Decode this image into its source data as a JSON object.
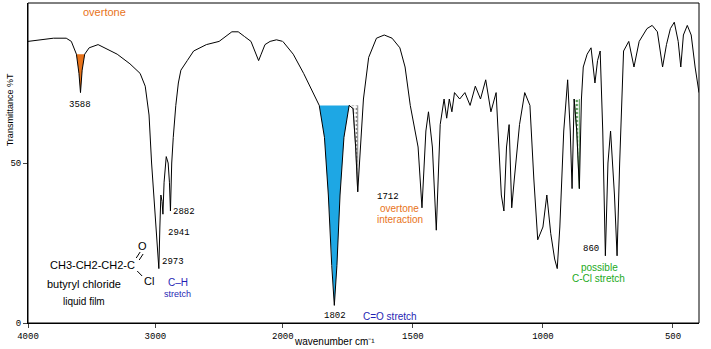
{
  "chart_data": [
    {
      "type": "line",
      "color": "#000000",
      "y_label": "Transmittance %T",
      "xlim": [
        4000,
        2000
      ],
      "xticks": [
        4000,
        3000,
        2000
      ],
      "ylim": [
        0,
        100
      ],
      "yticks": [
        0,
        50
      ],
      "x": [
        4000,
        3900,
        3800,
        3700,
        3660,
        3620,
        3600,
        3588,
        3575,
        3555,
        3520,
        3450,
        3400,
        3300,
        3200,
        3120,
        3080,
        3050,
        3030,
        3010,
        2995,
        2985,
        2973,
        2965,
        2957,
        2948,
        2941,
        2932,
        2915,
        2900,
        2890,
        2882,
        2872,
        2860,
        2840,
        2820,
        2800,
        2750,
        2700,
        2600,
        2500,
        2400,
        2350,
        2300,
        2250,
        2220,
        2190,
        2170,
        2140,
        2100,
        2050,
        2000
      ],
      "values": [
        88,
        88.5,
        89,
        89,
        88,
        84,
        78,
        72,
        79,
        84,
        86,
        87,
        86,
        84,
        81,
        78,
        74,
        65,
        50,
        38,
        28,
        22,
        17,
        30,
        40,
        38,
        34,
        44,
        52,
        50,
        44,
        35,
        50,
        58,
        68,
        75,
        79,
        82,
        85,
        87,
        88,
        91,
        91,
        89.5,
        88,
        85,
        82,
        84,
        87,
        88,
        88.5,
        88
      ],
      "regions": [
        {
          "type": "fill",
          "x0": 3620,
          "x1": 3555,
          "level": 84,
          "color": "#e8731a"
        }
      ],
      "annotations": [
        {
          "text": "overtone",
          "x": 3588,
          "y": 72,
          "color": "#e8731a"
        },
        {
          "text": "3588",
          "x": 3588,
          "y": 72,
          "color": "#000000"
        },
        {
          "text": "2973",
          "x": 2973,
          "y": 17,
          "color": "#000000"
        },
        {
          "text": "2941",
          "x": 2941,
          "y": 34,
          "color": "#000000"
        },
        {
          "text": "2882",
          "x": 2882,
          "y": 35,
          "color": "#000000"
        },
        {
          "text": "C–H",
          "x": 2973,
          "y": 17,
          "color": "#1f1fb4"
        },
        {
          "text": "stretch",
          "x": 2973,
          "y": 17,
          "color": "#1f1fb4"
        }
      ],
      "texts": [
        "CH3-CH2-CH2-C",
        "O",
        "Cl",
        "butyryl chloride",
        "liquid film"
      ]
    },
    {
      "type": "line",
      "color": "#000000",
      "x_label": "wavenumber cm⁻¹",
      "xlim": [
        2000,
        400
      ],
      "xticks": [
        1500,
        1000,
        500
      ],
      "x": [
        2000,
        1960,
        1920,
        1880,
        1860,
        1840,
        1825,
        1812,
        1802,
        1792,
        1780,
        1765,
        1745,
        1730,
        1720,
        1712,
        1704,
        1690,
        1670,
        1640,
        1610,
        1580,
        1550,
        1530,
        1510,
        1480,
        1465,
        1450,
        1440,
        1425,
        1410,
        1395,
        1380,
        1370,
        1360,
        1350,
        1340,
        1320,
        1300,
        1280,
        1260,
        1240,
        1220,
        1200,
        1180,
        1160,
        1150,
        1140,
        1130,
        1120,
        1110,
        1090,
        1070,
        1050,
        1035,
        1020,
        1000,
        985,
        970,
        955,
        945,
        935,
        920,
        905,
        895,
        888,
        880,
        870,
        860,
        852,
        845,
        830,
        815,
        800,
        790,
        780,
        770,
        760,
        750,
        740,
        725,
        715,
        705,
        690,
        670,
        650,
        630,
        600,
        580,
        560,
        540,
        525,
        510,
        495,
        480,
        470,
        460,
        445,
        430,
        415,
        400
      ],
      "values": [
        88,
        84,
        78,
        71,
        68,
        58,
        40,
        18,
        5.5,
        18,
        40,
        58,
        68,
        67,
        55,
        41,
        52,
        70,
        83,
        89,
        90,
        89,
        86,
        80,
        68,
        55,
        36,
        60,
        66,
        55,
        29,
        62,
        70,
        64,
        70,
        66,
        72,
        70,
        72,
        68,
        74,
        70,
        76,
        66,
        72,
        40,
        35,
        55,
        62,
        36,
        45,
        62,
        72,
        68,
        45,
        26,
        30,
        40,
        28,
        20,
        17,
        30,
        60,
        76,
        60,
        42,
        70,
        60,
        42,
        70,
        80,
        84,
        86,
        75,
        82,
        85,
        60,
        21,
        50,
        60,
        40,
        21,
        50,
        85,
        88,
        80,
        88,
        92,
        93,
        91,
        80,
        87,
        92,
        94,
        88,
        80,
        90,
        93,
        90,
        80,
        72
      ],
      "regions": [
        {
          "type": "fill",
          "x0": 1860,
          "x1": 1745,
          "level": 68,
          "color": "#1ea7e4"
        },
        {
          "type": "dotted",
          "x0": 1745,
          "x1": 1712,
          "level": 68,
          "color": "#8a8a8a"
        },
        {
          "type": "dotted",
          "x0": 880,
          "x1": 860,
          "level": 70,
          "color": "#5a9a5a"
        }
      ],
      "annotations": [
        {
          "text": "1712",
          "x": 1712,
          "y": 41,
          "color": "#000000"
        },
        {
          "text": "overtone",
          "x": 1712,
          "y": 41,
          "color": "#e8731a"
        },
        {
          "text": "interaction",
          "x": 1712,
          "y": 41,
          "color": "#e8731a"
        },
        {
          "text": "1802",
          "x": 1802,
          "y": 5.5,
          "color": "#000000"
        },
        {
          "text": "C=O stretch",
          "x": 1802,
          "y": 5.5,
          "color": "#1f1fb4"
        },
        {
          "text": "860",
          "x": 860,
          "y": 42,
          "color": "#000000"
        },
        {
          "text": "possible",
          "x": 860,
          "y": 42,
          "color": "#22aa22"
        },
        {
          "text": "C-Cl stretch",
          "x": 860,
          "y": 42,
          "color": "#22aa22"
        }
      ]
    }
  ]
}
